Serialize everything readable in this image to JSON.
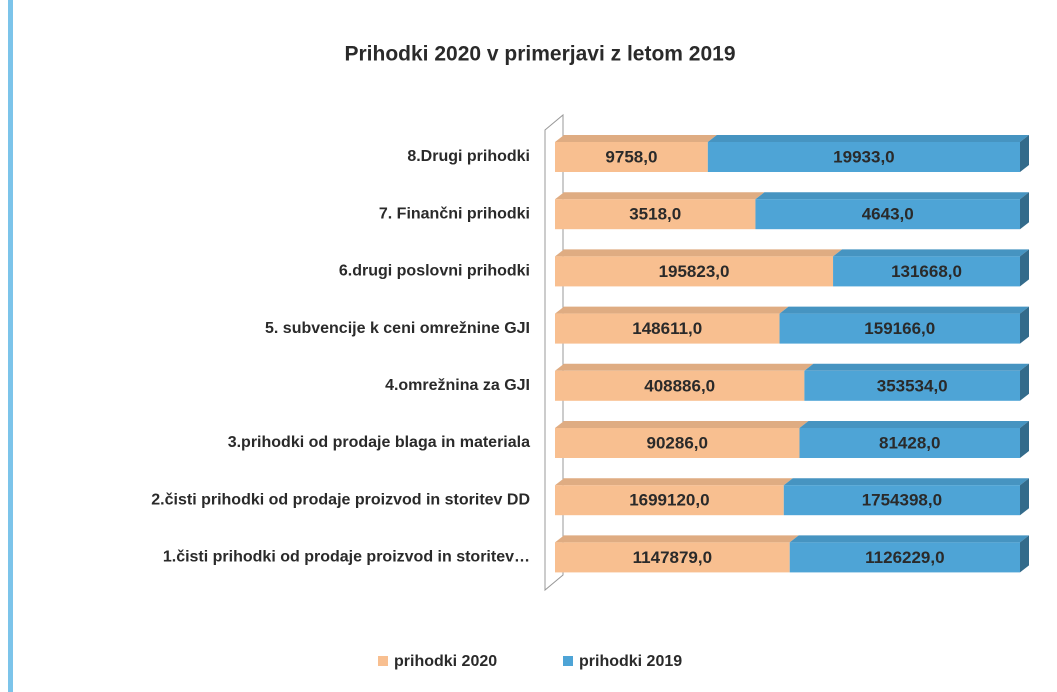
{
  "chart_data": {
    "type": "stacked-bar-100",
    "title": "Prihodki 2020 v primerjavi z letom 2019",
    "categories": [
      "8.Drugi prihodki",
      "7. Finančni prihodki",
      "6.drugi poslovni prihodki",
      "5. subvencije k ceni omrežnine GJI",
      "4.omrežnina za GJI",
      "3.prihodki od prodaje blaga in materiala",
      "2.čisti prihodki od prodaje proizvod in storitev DD",
      "1.čisti prihodki od prodaje proizvod in storitev…"
    ],
    "series": [
      {
        "name": "prihodki 2020",
        "color": "#f8bf90",
        "values": [
          9758,
          3518,
          195823,
          148611,
          408886,
          90286,
          1699120,
          1147879
        ],
        "value_labels": [
          "9758,0",
          "3518,0",
          "195823,0",
          "148611,0",
          "408886,0",
          "90286,0",
          "1699120,0",
          "1147879,0"
        ]
      },
      {
        "name": "prihodki 2019",
        "color": "#4ea4d6",
        "values": [
          19933,
          4643,
          131668,
          159166,
          353534,
          81428,
          1754398,
          1126229
        ],
        "value_labels": [
          "19933,0",
          "4643,0",
          "131668,0",
          "159166,0",
          "353534,0",
          "81428,0",
          "1754398,0",
          "1126229,0"
        ]
      }
    ],
    "legend": "bottom"
  }
}
